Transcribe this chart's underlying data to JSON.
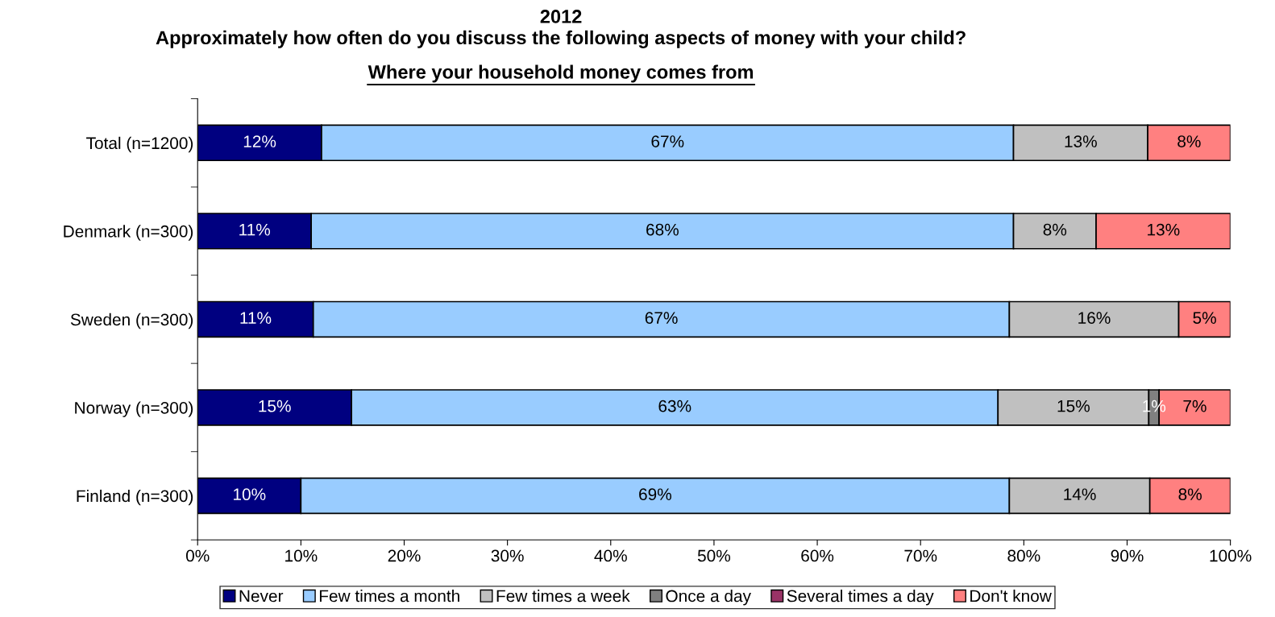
{
  "chart_data": {
    "type": "bar",
    "orientation": "horizontal",
    "stacked": true,
    "title": "2012\nApproximately how often do you discuss the following aspects of money with your child?",
    "subtitle": "Where your household money comes from",
    "categories": [
      "Total (n=1200)",
      "Denmark (n=300)",
      "Sweden (n=300)",
      "Norway (n=300)",
      "Finland (n=300)"
    ],
    "series": [
      {
        "name": "Never",
        "color": "#000080",
        "values": [
          12,
          11,
          11.2,
          14.9,
          10.0
        ],
        "value_labels": [
          "12%",
          "11%",
          "11%",
          "15%",
          "10%"
        ]
      },
      {
        "name": "Few times a month",
        "color": "#99ccff",
        "values": [
          67,
          68,
          67.4,
          62.6,
          68.6
        ],
        "value_labels": [
          "67%",
          "68%",
          "67%",
          "63%",
          "69%"
        ]
      },
      {
        "name": "Few times a week",
        "color": "#c0c0c0",
        "values": [
          13,
          8,
          16.4,
          14.6,
          13.6
        ],
        "value_labels": [
          "13%",
          "8%",
          "16%",
          "15%",
          "14%"
        ]
      },
      {
        "name": "Once a day",
        "color": "#808080",
        "values": [
          null,
          null,
          null,
          1.0,
          null
        ],
        "value_labels": [
          null,
          null,
          null,
          "1%",
          null
        ]
      },
      {
        "name": "Several times a day",
        "color": "#993366",
        "values": [
          null,
          null,
          null,
          null,
          null
        ],
        "value_labels": [
          null,
          null,
          null,
          null,
          null
        ]
      },
      {
        "name": "Don't know",
        "color": "#ff8080",
        "values": [
          8,
          13,
          5.0,
          6.9,
          7.8
        ],
        "value_labels": [
          "8%",
          "13%",
          "5%",
          "7%",
          "8%"
        ]
      }
    ],
    "xlim": [
      0,
      100
    ],
    "xticks": [
      {
        "value": 0,
        "label": "0%"
      },
      {
        "value": 10,
        "label": "10%"
      },
      {
        "value": 20,
        "label": "20%"
      },
      {
        "value": 30,
        "label": "30%"
      },
      {
        "value": 40,
        "label": "40%"
      },
      {
        "value": 50,
        "label": "50%"
      },
      {
        "value": 60,
        "label": "60%"
      },
      {
        "value": 70,
        "label": "70%"
      },
      {
        "value": 80,
        "label": "80%"
      },
      {
        "value": 90,
        "label": "90%"
      },
      {
        "value": 100,
        "label": "100%"
      }
    ],
    "grid": false,
    "legend": "bottom"
  }
}
